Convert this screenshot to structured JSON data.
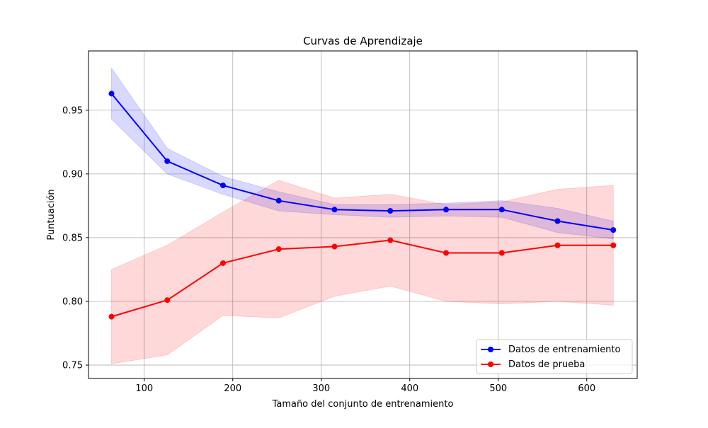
{
  "chart_data": {
    "type": "line",
    "title": "Curvas de Aprendizaje",
    "xlabel": "Tamaño del conjunto de entrenamiento",
    "ylabel": "Puntuación",
    "xlim": [
      37,
      657
    ],
    "ylim": [
      0.7395,
      0.9965
    ],
    "x_ticks": [
      100,
      200,
      300,
      400,
      500,
      600
    ],
    "y_ticks": [
      0.75,
      0.8,
      0.85,
      0.9,
      0.95
    ],
    "x_tick_labels": [
      "100",
      "200",
      "300",
      "400",
      "500",
      "600"
    ],
    "y_tick_labels": [
      "0.75",
      "0.80",
      "0.85",
      "0.90",
      "0.95"
    ],
    "grid": true,
    "legend_position": "lower-right",
    "x": [
      63,
      126,
      189,
      252,
      315,
      378,
      441,
      504,
      567,
      630
    ],
    "series": [
      {
        "name": "Datos de entrenamiento",
        "color": "#0000ff",
        "band_color": "#0000ff",
        "values": [
          0.963,
          0.91,
          0.891,
          0.879,
          0.872,
          0.871,
          0.872,
          0.872,
          0.863,
          0.856
        ],
        "upper": [
          0.983,
          0.92,
          0.898,
          0.886,
          0.876,
          0.876,
          0.877,
          0.879,
          0.873,
          0.863
        ],
        "lower": [
          0.943,
          0.9,
          0.884,
          0.871,
          0.868,
          0.866,
          0.867,
          0.866,
          0.854,
          0.849
        ]
      },
      {
        "name": "Datos de prueba",
        "color": "#ff0000",
        "band_color": "#ff0000",
        "values": [
          0.788,
          0.801,
          0.83,
          0.841,
          0.843,
          0.848,
          0.838,
          0.838,
          0.844,
          0.844
        ],
        "upper": [
          0.825,
          0.844,
          0.87,
          0.895,
          0.881,
          0.884,
          0.876,
          0.878,
          0.888,
          0.891
        ],
        "lower": [
          0.751,
          0.758,
          0.789,
          0.787,
          0.804,
          0.812,
          0.8,
          0.798,
          0.8,
          0.797
        ]
      }
    ]
  }
}
